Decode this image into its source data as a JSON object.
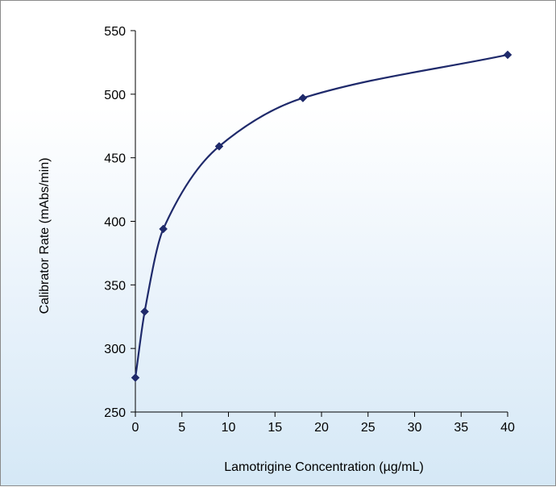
{
  "chart_data": {
    "type": "line",
    "title": "",
    "xlabel": "Lamotrigine Concentration  (µg/mL)",
    "ylabel": "Calibrator Rate  (mAbs/min)",
    "xlim": [
      0,
      40
    ],
    "ylim": [
      250,
      550
    ],
    "x_ticks": [
      "0",
      "5",
      "10",
      "15",
      "20",
      "25",
      "30",
      "35",
      "40"
    ],
    "y_ticks": [
      "250",
      "300",
      "350",
      "400",
      "450",
      "500",
      "550"
    ],
    "grid": false,
    "legend": "none",
    "series": [
      {
        "x": [
          0,
          1,
          3,
          9,
          18,
          40
        ],
        "y": [
          277,
          329,
          394,
          459,
          497,
          531
        ]
      }
    ],
    "colors": {
      "line": "#1f2a6b",
      "marker": "#1f2a6b",
      "axis": "#000000",
      "background_top": "#ffffff",
      "background_bottom": "#d5e8f6"
    },
    "marker": "diamond"
  }
}
